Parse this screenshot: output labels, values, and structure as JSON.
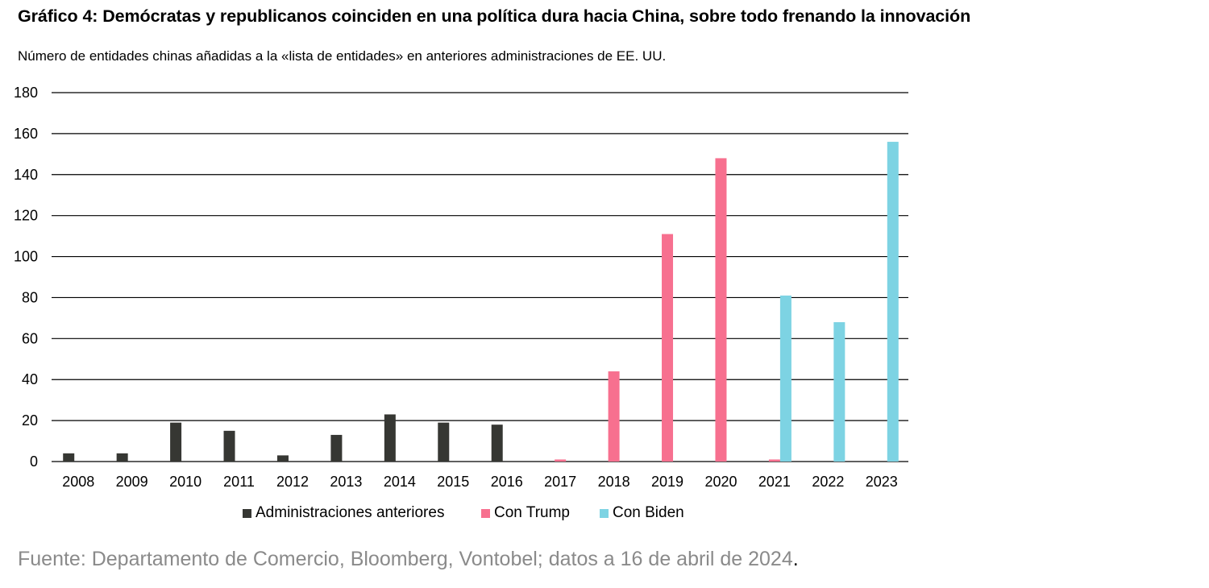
{
  "title": "Gráfico 4: Demócratas y republicanos coinciden en una política dura hacia China, sobre todo frenando la innovación",
  "subtitle": "Número de entidades chinas añadidas a la «lista de entidades» en anteriores administraciones de EE. UU.",
  "source": "Fuente: Departamento de Comercio, Bloomberg, Vontobel; datos a 16 de abril de 2024",
  "source_end": ".",
  "colors": {
    "anteriores": "#363733",
    "trump": "#f7708f",
    "biden": "#7dd3e3",
    "grid": "#000000"
  },
  "chart_data": {
    "type": "bar",
    "title": "Gráfico 4: Demócratas y republicanos coinciden en una política dura hacia China, sobre todo frenando la innovación",
    "subtitle": "Número de entidades chinas añadidas a la «lista de entidades» en anteriores administraciones de EE. UU.",
    "categories": [
      "2008",
      "2009",
      "2010",
      "2011",
      "2012",
      "2013",
      "2014",
      "2015",
      "2016",
      "2017",
      "2018",
      "2019",
      "2020",
      "2021",
      "2022",
      "2023"
    ],
    "ylim": [
      0,
      180
    ],
    "yticks": [
      0,
      20,
      40,
      60,
      80,
      100,
      120,
      140,
      160,
      180
    ],
    "grid": true,
    "legend_position": "bottom",
    "series": [
      {
        "name": "Administraciones anteriores",
        "color": "#363733",
        "values": [
          4,
          4,
          19,
          15,
          3,
          13,
          23,
          19,
          18,
          0,
          0,
          0,
          0,
          0,
          0,
          0
        ]
      },
      {
        "name": "Con Trump",
        "color": "#f7708f",
        "values": [
          0,
          0,
          0,
          0,
          0,
          0,
          0,
          0,
          0,
          1,
          44,
          111,
          148,
          1,
          0,
          0
        ]
      },
      {
        "name": "Con Biden",
        "color": "#7dd3e3",
        "values": [
          0,
          0,
          0,
          0,
          0,
          0,
          0,
          0,
          0,
          0,
          0,
          0,
          0,
          81,
          68,
          156
        ]
      }
    ]
  }
}
